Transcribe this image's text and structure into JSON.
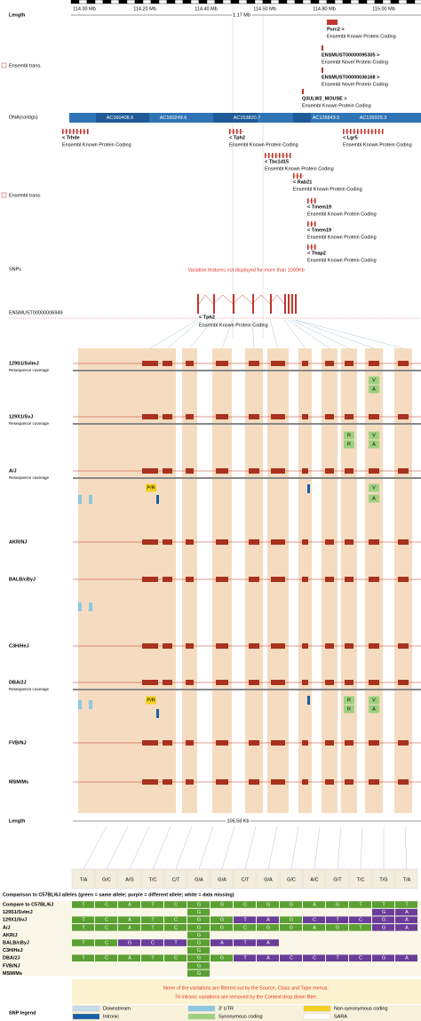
{
  "ruler": {
    "label": "Length",
    "ticks": [
      "114.00 Mb",
      "114.20 Mb",
      "114.40 Mb",
      "114.60 Mb",
      "114.80 Mb",
      "115.00 Mb"
    ],
    "span": "1.17 Mb"
  },
  "upper_transcripts": {
    "label": "Ensembl trans.",
    "items": [
      {
        "name": "Psrc2 >",
        "type": "Ensembl Known Protein Coding"
      },
      {
        "name": "ENSMUST00000095305 >",
        "type": "Ensembl Novel Protein Coding"
      },
      {
        "name": "ENSMUST00000036168 >",
        "type": "Ensembl Novel Protein Coding"
      },
      {
        "name": "Q3ULW2_MOUSE >",
        "type": "Ensembl Known Protein Coding"
      }
    ]
  },
  "contigs": {
    "label": "DNA(contigs)",
    "names": [
      "AC160408.6",
      "AC160249.6",
      "AC153820.7",
      "AC126843.5",
      "AC139329.3"
    ]
  },
  "lower_transcripts": {
    "label": "Ensembl trans.",
    "items": [
      {
        "name": "< Trhde",
        "type": "Ensembl Known Protein Coding"
      },
      {
        "name": "< Tph2",
        "type": "Ensembl Known Protein Coding"
      },
      {
        "name": "< Lgr5",
        "type": "Ensembl Known Protein Coding"
      },
      {
        "name": "< Tbc1d15",
        "type": "Ensembl Known Protein Coding"
      },
      {
        "name": "< Rab21",
        "type": "Ensembl Known Protein Coding"
      },
      {
        "name": "< Tmem19",
        "type": "Ensembl Known Protein Coding"
      },
      {
        "name": "< Tmem19",
        "type": "Ensembl Known Protein Coding"
      },
      {
        "name": "< Thap2",
        "type": "Ensembl Known Protein Coding"
      }
    ]
  },
  "snps": {
    "label": "SNPs",
    "message": "Variation features not displayed for more than 1000Kb"
  },
  "transcript": {
    "id": "ENSMUST00000006949",
    "name": "< Tph2",
    "type": "Ensembl Known Protein Coding"
  },
  "strains": [
    {
      "name": "129S1/SvImJ",
      "coverage": "Resequence coverage",
      "residues": [
        "V",
        "A"
      ]
    },
    {
      "name": "129X1/SvJ",
      "coverage": "Resequence coverage",
      "residues": [
        "R",
        "R",
        "V",
        "A"
      ]
    },
    {
      "name": "A/J",
      "coverage": "Resequence coverage",
      "residues": [
        "P/R",
        "V",
        "A"
      ]
    },
    {
      "name": "AKR/NJ"
    },
    {
      "name": "BALB/cByJ"
    },
    {
      "name": "C3H/HeJ"
    },
    {
      "name": "DBA/2J",
      "coverage": "Resequence coverage",
      "residues": [
        "P/R",
        "R",
        "R",
        "V",
        "A"
      ]
    },
    {
      "name": "FVB/NJ"
    },
    {
      "name": "MSM/Ms"
    }
  ],
  "length": {
    "label": "Length",
    "value": "106.58 Kb"
  },
  "comparison": {
    "title": "Comparison to C57BL/6J alleles (green = same allele; purple = different allele; white = data missing)",
    "columns": [
      "T/A",
      "G/C",
      "A/G",
      "T/C",
      "C/T",
      "G/A",
      "G/A",
      "C/T",
      "G/A",
      "G/C",
      "A/C",
      "G/T",
      "T/C",
      "T/G",
      "T/A"
    ],
    "reference_label": "Compare to C57BL/6J",
    "reference": [
      "T",
      "C",
      "A",
      "T",
      "C",
      "G",
      "G",
      "C",
      "G",
      "G",
      "A",
      "G",
      "T",
      "T",
      "T"
    ],
    "rows": [
      {
        "name": "129S1/SvImJ",
        "alleles": [
          null,
          null,
          null,
          null,
          null,
          "G",
          null,
          null,
          null,
          null,
          null,
          null,
          null,
          "G",
          "A"
        ]
      },
      {
        "name": "129X1/SvJ",
        "alleles": [
          "T",
          "C",
          "A",
          "T",
          "C",
          "G",
          "G",
          "T",
          "A",
          "G",
          "C",
          "T",
          "C",
          "G",
          "A"
        ]
      },
      {
        "name": "A/J",
        "alleles": [
          "T",
          "C",
          "A",
          "T",
          "C",
          "G",
          "G",
          "C",
          "G",
          "G",
          "A",
          "G",
          "T",
          "G",
          "A"
        ]
      },
      {
        "name": "AKR/J",
        "alleles": [
          null,
          null,
          null,
          null,
          null,
          "G",
          null,
          null,
          null,
          null,
          null,
          null,
          null,
          null,
          null
        ]
      },
      {
        "name": "BALB/cByJ",
        "alleles": [
          "T",
          "C",
          "G",
          "C",
          "T",
          "G",
          "A",
          "T",
          "A",
          null,
          null,
          null,
          null,
          null,
          null
        ]
      },
      {
        "name": "C3H/HeJ",
        "alleles": [
          null,
          null,
          null,
          null,
          null,
          "G",
          null,
          null,
          null,
          null,
          null,
          null,
          null,
          null,
          null
        ]
      },
      {
        "name": "DBA/2J",
        "alleles": [
          "T",
          "C",
          "A",
          "T",
          "C",
          "G",
          "G",
          "T",
          "A",
          "C",
          "C",
          "T",
          "C",
          "G",
          "A"
        ]
      },
      {
        "name": "FVB/NJ",
        "alleles": [
          null,
          null,
          null,
          null,
          null,
          "G",
          null,
          null,
          null,
          null,
          null,
          null,
          null,
          null,
          null
        ]
      },
      {
        "name": "MSM/Ms",
        "alleles": [
          null,
          null,
          null,
          null,
          null,
          "G",
          null,
          null,
          null,
          null,
          null,
          null,
          null,
          null,
          null
        ]
      }
    ]
  },
  "notes": [
    "None of the variations are filtered out by the Source, Class and Type menus.",
    "76 intronic variations are removed by the Context drop down filter."
  ],
  "legend": {
    "title": "SNP legend",
    "items": [
      "Downstream",
      "3' UTR",
      "Non-synonymous coding",
      "Intronic",
      "Synonymous coding",
      "SARA"
    ]
  }
}
